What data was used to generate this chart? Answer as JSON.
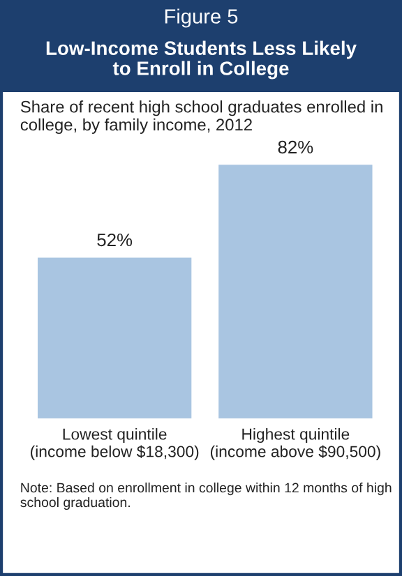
{
  "chart_data": {
    "type": "bar",
    "title": "Low-Income Students Less Likely\nto Enroll in College",
    "subtitle": "Share of recent high school graduates enrolled in college, by family income, 2012",
    "categories": [
      "Lowest quintile\n(income below $18,300)",
      "Highest quintile\n(income above $90,500)"
    ],
    "values": [
      52,
      82
    ],
    "value_labels": [
      "52%",
      "82%"
    ],
    "color": "#a9c5e1",
    "annotations": [
      "Figure 5",
      "Note: Based on enrollment in college within 12 months of high school graduation."
    ]
  }
}
